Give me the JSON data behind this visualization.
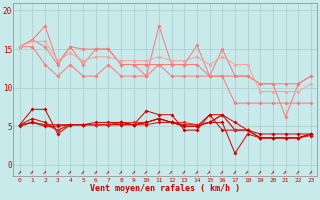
{
  "xlabel": "Vent moyen/en rafales ( km/h )",
  "background_color": "#c8eaea",
  "grid_color": "#a8cccc",
  "x_values": [
    0,
    1,
    2,
    3,
    4,
    5,
    6,
    7,
    8,
    9,
    10,
    11,
    12,
    13,
    14,
    15,
    16,
    17,
    18,
    19,
    20,
    21,
    22,
    23
  ],
  "ylim": [
    -1.5,
    21
  ],
  "xlim": [
    -0.5,
    23.5
  ],
  "yticks": [
    0,
    5,
    10,
    15,
    20
  ],
  "light_lines": [
    {
      "color": "#f87878",
      "values": [
        15.3,
        16.2,
        18.0,
        13.2,
        15.3,
        13.0,
        15.0,
        15.0,
        13.0,
        13.0,
        11.5,
        18.0,
        13.0,
        13.0,
        15.5,
        11.5,
        15.0,
        11.5,
        11.5,
        10.5,
        10.5,
        6.2,
        10.5,
        11.5
      ]
    },
    {
      "color": "#f87878",
      "values": [
        15.3,
        16.2,
        15.3,
        13.0,
        15.3,
        15.0,
        15.0,
        15.0,
        13.0,
        13.0,
        13.0,
        13.0,
        13.0,
        13.0,
        13.0,
        11.5,
        11.5,
        11.5,
        11.5,
        10.5,
        10.5,
        10.5,
        10.5,
        11.5
      ]
    },
    {
      "color": "#f87878",
      "values": [
        15.3,
        15.3,
        13.0,
        11.5,
        13.0,
        11.5,
        11.5,
        13.0,
        11.5,
        11.5,
        11.5,
        13.0,
        11.5,
        11.5,
        11.5,
        11.5,
        11.5,
        8.0,
        8.0,
        8.0,
        8.0,
        8.0,
        8.0,
        8.0
      ]
    },
    {
      "color": "#f8a0a0",
      "values": [
        15.3,
        16.0,
        16.0,
        13.5,
        14.5,
        13.5,
        14.0,
        14.0,
        13.5,
        13.5,
        13.5,
        14.0,
        13.5,
        13.5,
        14.0,
        13.0,
        14.0,
        13.0,
        13.0,
        9.5,
        9.5,
        9.5,
        9.5,
        10.5
      ]
    }
  ],
  "dark_lines": [
    {
      "color": "#cc0000",
      "values": [
        5.2,
        7.2,
        7.2,
        4.0,
        5.2,
        5.2,
        5.2,
        5.2,
        5.2,
        5.2,
        7.0,
        6.5,
        6.5,
        4.5,
        4.5,
        6.5,
        4.5,
        4.5,
        4.5,
        4.0,
        4.0,
        4.0,
        4.0,
        4.0
      ]
    },
    {
      "color": "#cc0000",
      "values": [
        5.2,
        5.5,
        5.2,
        5.2,
        5.2,
        5.2,
        5.2,
        5.2,
        5.5,
        5.2,
        5.5,
        6.0,
        5.5,
        5.2,
        5.2,
        5.5,
        5.5,
        1.5,
        4.0,
        3.5,
        3.5,
        3.5,
        3.5,
        4.0
      ]
    },
    {
      "color": "#dd0000",
      "values": [
        5.2,
        6.0,
        5.5,
        4.5,
        5.2,
        5.2,
        5.2,
        5.2,
        5.2,
        5.2,
        5.2,
        5.5,
        5.5,
        5.0,
        5.0,
        6.5,
        6.5,
        4.5,
        4.5,
        3.5,
        3.5,
        3.5,
        3.5,
        3.8
      ]
    },
    {
      "color": "#ee2222",
      "values": [
        5.2,
        5.5,
        5.2,
        4.5,
        5.2,
        5.2,
        5.2,
        5.2,
        5.5,
        5.5,
        5.5,
        6.0,
        5.5,
        5.5,
        5.2,
        5.5,
        6.5,
        4.5,
        4.5,
        3.5,
        3.5,
        3.5,
        3.5,
        4.0
      ]
    },
    {
      "color": "#cc0000",
      "values": [
        5.0,
        5.5,
        5.0,
        5.0,
        5.2,
        5.2,
        5.5,
        5.5,
        5.5,
        5.2,
        5.5,
        6.0,
        5.5,
        5.0,
        5.0,
        5.5,
        6.5,
        5.5,
        4.5,
        3.5,
        3.5,
        3.5,
        3.5,
        4.0
      ]
    }
  ],
  "marker_size": 2.0,
  "linewidth": 0.7
}
